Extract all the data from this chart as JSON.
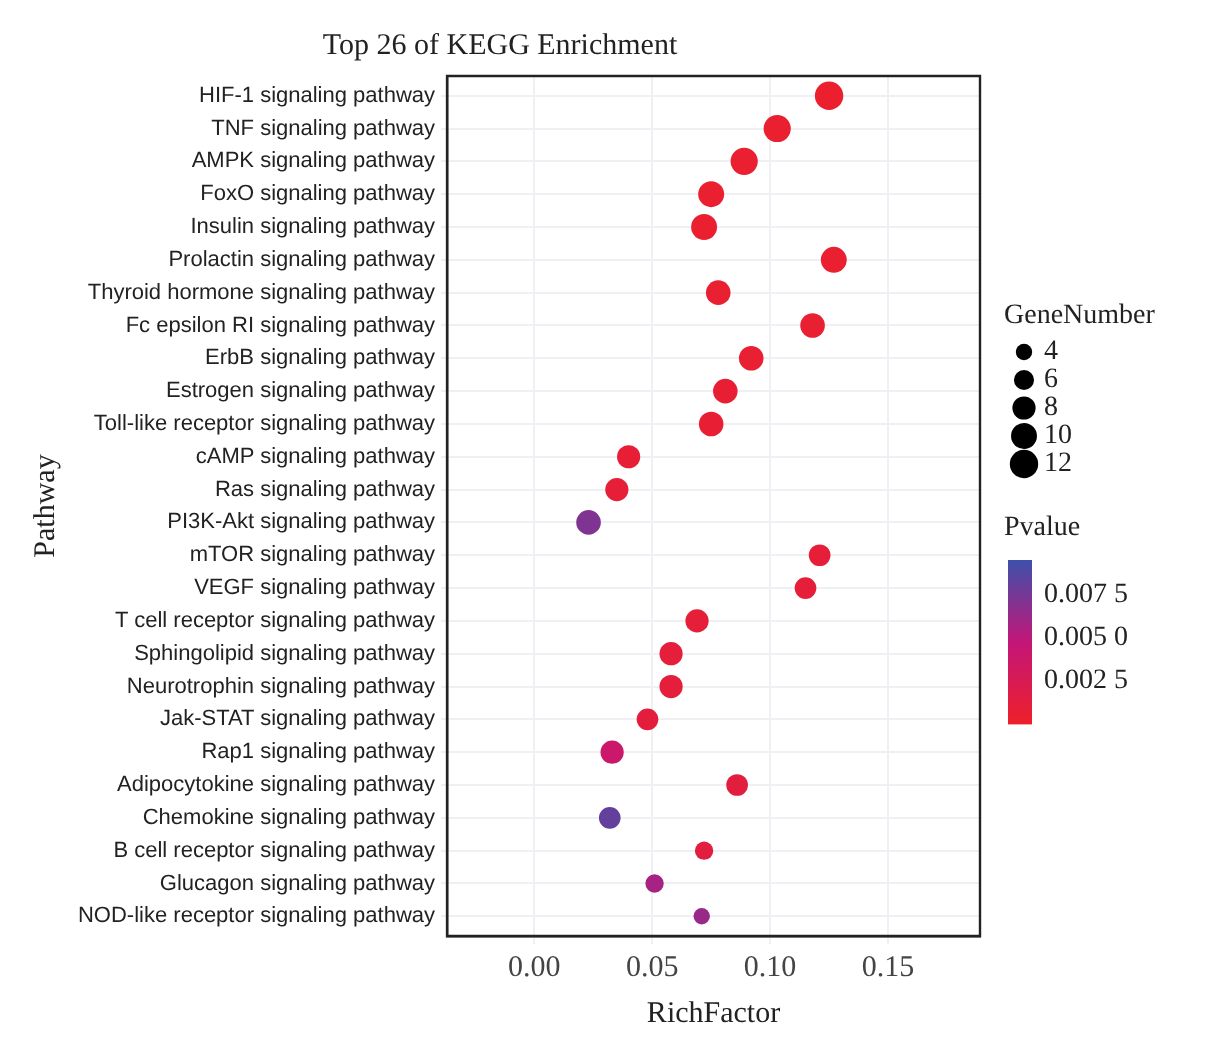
{
  "chart_data": {
    "type": "bubble",
    "orientation": "horizontal",
    "title": "Top 26 of KEGG Enrichment",
    "xlabel": "RichFactor",
    "ylabel": "Pathway",
    "categories": [
      "HIF-1 signaling pathway",
      "TNF signaling pathway",
      "AMPK signaling pathway",
      "FoxO signaling pathway",
      "Insulin signaling pathway",
      "Prolactin signaling pathway",
      "Thyroid hormone signaling pathway",
      "Fc epsilon RI signaling pathway",
      "ErbB signaling pathway",
      "Estrogen signaling pathway",
      "Toll-like receptor signaling pathway",
      "cAMP signaling pathway",
      "Ras signaling pathway",
      "PI3K-Akt signaling pathway",
      "mTOR signaling pathway",
      "VEGF signaling pathway",
      "T cell receptor signaling pathway",
      "Sphingolipid signaling pathway",
      "Neurotrophin signaling pathway",
      "Jak-STAT signaling pathway",
      "Rap1 signaling pathway",
      "Adipocytokine signaling pathway",
      "Chemokine signaling pathway",
      "B cell receptor signaling pathway",
      "Glucagon signaling pathway",
      "NOD-like receptor signaling pathway"
    ],
    "values": [
      0.125,
      0.103,
      0.089,
      0.075,
      0.072,
      0.127,
      0.078,
      0.118,
      0.092,
      0.081,
      0.075,
      0.04,
      0.035,
      0.023,
      0.121,
      0.115,
      0.069,
      0.058,
      0.058,
      0.048,
      0.033,
      0.086,
      0.032,
      0.072,
      0.051,
      0.071
    ],
    "sizes": [
      12,
      11,
      11,
      10,
      10,
      10,
      9,
      9,
      9,
      9,
      9,
      8,
      8,
      9,
      7,
      7,
      8,
      8,
      8,
      7,
      8,
      7,
      7,
      5,
      5,
      4
    ],
    "cvalues": [
      0.0003,
      0.0004,
      0.0004,
      0.0005,
      0.0005,
      0.0005,
      0.0006,
      0.0006,
      0.0006,
      0.0007,
      0.0007,
      0.0008,
      0.0009,
      0.0072,
      0.0009,
      0.001,
      0.001,
      0.0011,
      0.0011,
      0.0012,
      0.004,
      0.0013,
      0.0082,
      0.0014,
      0.0058,
      0.0063
    ],
    "size_legend": [
      4,
      6,
      8,
      10,
      12
    ],
    "legend_title": "GeneNumber",
    "clabel": "Pvalue",
    "clim": [
      0,
      0.0095
    ],
    "cticks": [
      {
        "value": 0.0075,
        "label": "0.007 5"
      },
      {
        "value": 0.005,
        "label": "0.005 0"
      },
      {
        "value": 0.0025,
        "label": "0.002 5"
      }
    ],
    "xlim": [
      -0.037,
      0.189
    ],
    "xticks": [
      {
        "value": 0,
        "label": "0.00"
      },
      {
        "value": 0.05,
        "label": "0.05"
      },
      {
        "value": 0.1,
        "label": "0.10"
      },
      {
        "value": 0.15,
        "label": "0.15"
      }
    ],
    "grid": true
  }
}
